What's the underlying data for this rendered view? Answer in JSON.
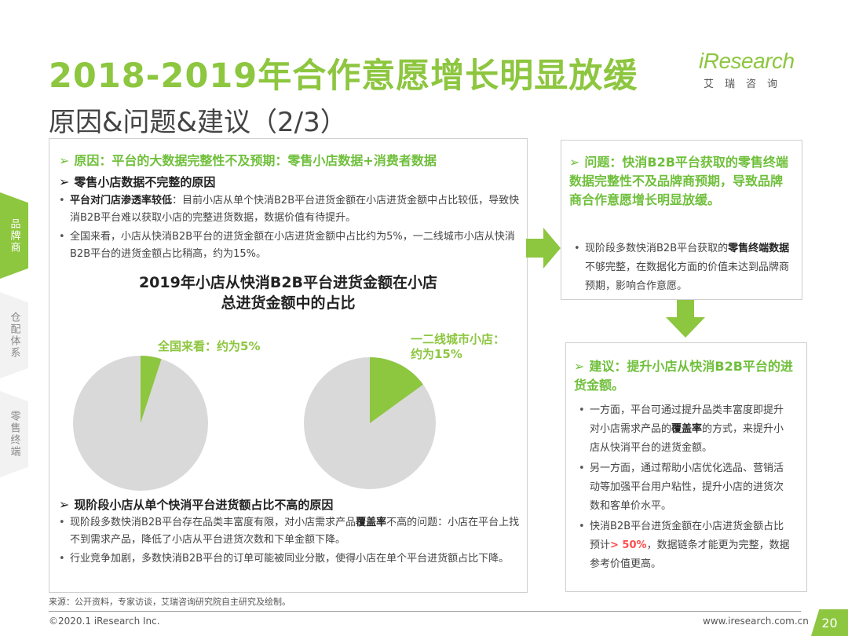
{
  "title": "2018-2019年合作意愿增长明显放缓",
  "subtitle": "原因&问题&建议（2/3）",
  "logo": {
    "main": "iResearch",
    "sub": "艾瑞咨询"
  },
  "sidebar": [
    "品牌商",
    "仓配体系",
    "零售终端"
  ],
  "left": {
    "reason_heading": "原因：平台的大数据完整性不及预期：零售小店数据+消费者数据",
    "sub1_heading": "零售小店数据不完整的原因",
    "b1_bold": "平台对门店渗透率较低",
    "b1_text": "：目前小店从单个快消B2B平台进货金额在小店进货金额中占比较低，导致快消B2B平台难以获取小店的完整进货数据，数据价值有待提升。",
    "b2_text": "全国来看，小店从快消B2B平台的进货金额在小店进货金额中占比约为5%，一二线城市小店从快消B2B平台的进货金额占比稍高，约为15%。",
    "sub2_heading": "现阶段小店从单个快消平台进货额占比不高的原因",
    "b3_pre": "现阶段多数快消B2B平台存在品类丰富度有限，对小店需求产品",
    "b3_bold": "覆盖率",
    "b3_post": "不高的问题：小店在平台上找不到需求产品，降低了小店从平台进货次数和下单金额下降。",
    "b4_text": "行业竞争加剧，多数快消B2B平台的订单可能被同业分散，使得小店在单个平台进货额占比下降。"
  },
  "chart_data": {
    "type": "pie",
    "title_line1": "2019年小店从快消B2B平台进货金额在小店",
    "title_line2": "总进货金额中的占比",
    "pies": [
      {
        "label": "全国来看：约为5%",
        "value": 5
      },
      {
        "label_line1": "一二线城市小店：",
        "label_line2": "约为15%",
        "value": 15
      }
    ],
    "colors": {
      "highlight": "#8dc63f",
      "rest": "#d9d9d9"
    }
  },
  "problem": {
    "heading": "问题：快消B2B平台获取的零售终端数据完整性不及品牌商预期，导致品牌商合作意愿增长明显放缓。",
    "b_pre": "现阶段多数快消B2B平台获取的",
    "b_bold": "零售终端数据",
    "b_post": "不够完整，在数据化方面的价值未达到品牌商预期，影响合作意愿。"
  },
  "suggestion": {
    "heading": "建议：提升小店从快消B2B平台的进货金额。",
    "b1_pre": "一方面，平台可通过提升品类丰富度即提升对小店需求产品的",
    "b1_bold": "覆盖率",
    "b1_post": "的方式，来提升小店从快消平台的进货金额。",
    "b2_text": "另一方面，通过帮助小店优化选品、营销活动等加强平台用户粘性，提升小店的进货次数和客单价水平。",
    "b3_pre": "快消B2B平台进货金额在小店进货金额占比预计",
    "b3_red": "> 50%",
    "b3_post": "，数据链条才能更为完整，数据参考价值更高。"
  },
  "footer": {
    "source": "来源：公开资料，专家访谈，艾瑞咨询研究院自主研究及绘制。",
    "copyright": "©2020.1 iResearch Inc.",
    "website": "www.iresearch.com.cn",
    "page": "20"
  }
}
